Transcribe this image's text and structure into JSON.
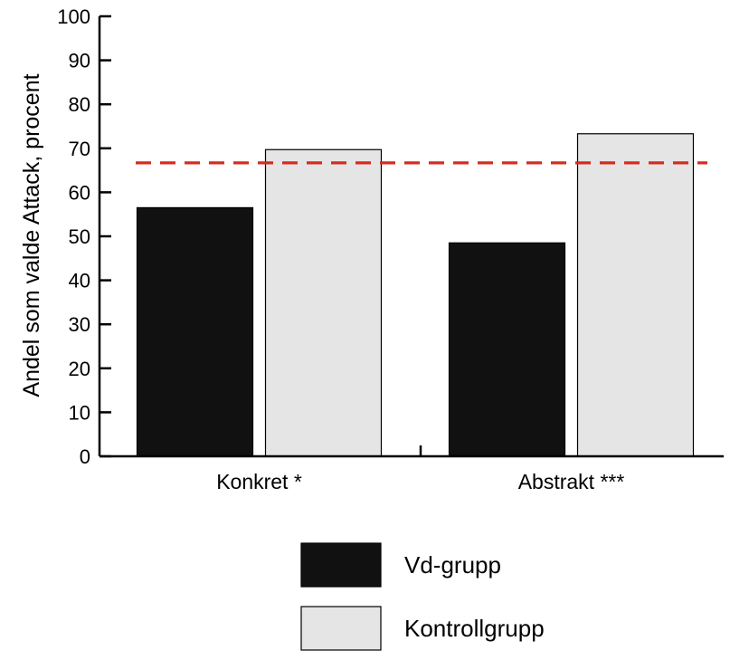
{
  "chart_data": {
    "type": "bar",
    "ylabel": "Andel som valde Attack, procent",
    "xlabel": "",
    "ylim": [
      0,
      100
    ],
    "yticks": [
      0,
      10,
      20,
      30,
      40,
      50,
      60,
      70,
      80,
      90,
      100
    ],
    "categories": [
      "Konkret *",
      "Abstrakt ***"
    ],
    "series": [
      {
        "name": "Vd-grupp",
        "values": [
          56.5,
          48.5
        ],
        "color": "#111111"
      },
      {
        "name": "Kontrollgrupp",
        "values": [
          69.7,
          73.3
        ],
        "color": "#e5e5e5"
      }
    ],
    "reference_line": {
      "value": 66.7,
      "color": "#d72b1e",
      "style": "dashed"
    },
    "legend_placement": "bottom-center",
    "grid": false
  }
}
